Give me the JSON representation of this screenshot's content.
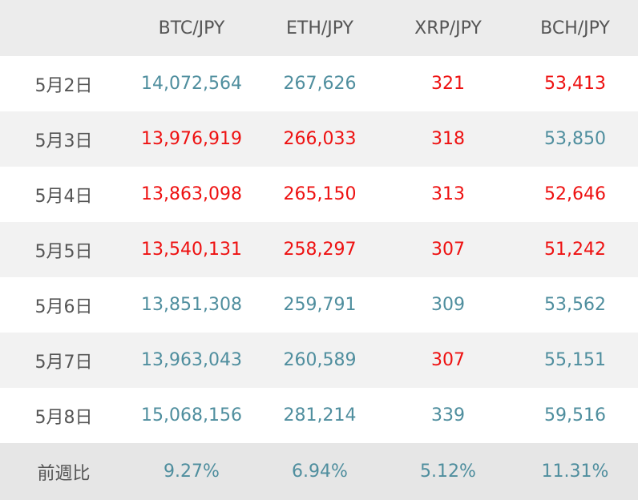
{
  "headers": [
    "",
    "BTC/JPY",
    "ETH/JPY",
    "XRP/JPY",
    "BCH/JPY"
  ],
  "colors": {
    "up": "#4f8e9e",
    "down": "#ee1111"
  },
  "rows": [
    {
      "date": "5月2日",
      "cells": [
        {
          "value": "14,072,564",
          "trend": "up"
        },
        {
          "value": "267,626",
          "trend": "up"
        },
        {
          "value": "321",
          "trend": "down"
        },
        {
          "value": "53,413",
          "trend": "down"
        }
      ]
    },
    {
      "date": "5月3日",
      "cells": [
        {
          "value": "13,976,919",
          "trend": "down"
        },
        {
          "value": "266,033",
          "trend": "down"
        },
        {
          "value": "318",
          "trend": "down"
        },
        {
          "value": "53,850",
          "trend": "up"
        }
      ]
    },
    {
      "date": "5月4日",
      "cells": [
        {
          "value": "13,863,098",
          "trend": "down"
        },
        {
          "value": "265,150",
          "trend": "down"
        },
        {
          "value": "313",
          "trend": "down"
        },
        {
          "value": "52,646",
          "trend": "down"
        }
      ]
    },
    {
      "date": "5月5日",
      "cells": [
        {
          "value": "13,540,131",
          "trend": "down"
        },
        {
          "value": "258,297",
          "trend": "down"
        },
        {
          "value": "307",
          "trend": "down"
        },
        {
          "value": "51,242",
          "trend": "down"
        }
      ]
    },
    {
      "date": "5月6日",
      "cells": [
        {
          "value": "13,851,308",
          "trend": "up"
        },
        {
          "value": "259,791",
          "trend": "up"
        },
        {
          "value": "309",
          "trend": "up"
        },
        {
          "value": "53,562",
          "trend": "up"
        }
      ]
    },
    {
      "date": "5月7日",
      "cells": [
        {
          "value": "13,963,043",
          "trend": "up"
        },
        {
          "value": "260,589",
          "trend": "up"
        },
        {
          "value": "307",
          "trend": "down"
        },
        {
          "value": "55,151",
          "trend": "up"
        }
      ]
    },
    {
      "date": "5月8日",
      "cells": [
        {
          "value": "15,068,156",
          "trend": "up"
        },
        {
          "value": "281,214",
          "trend": "up"
        },
        {
          "value": "339",
          "trend": "up"
        },
        {
          "value": "59,516",
          "trend": "up"
        }
      ]
    }
  ],
  "footer": {
    "label": "前週比",
    "values": [
      "9.27%",
      "6.94%",
      "5.12%",
      "11.31%"
    ]
  }
}
